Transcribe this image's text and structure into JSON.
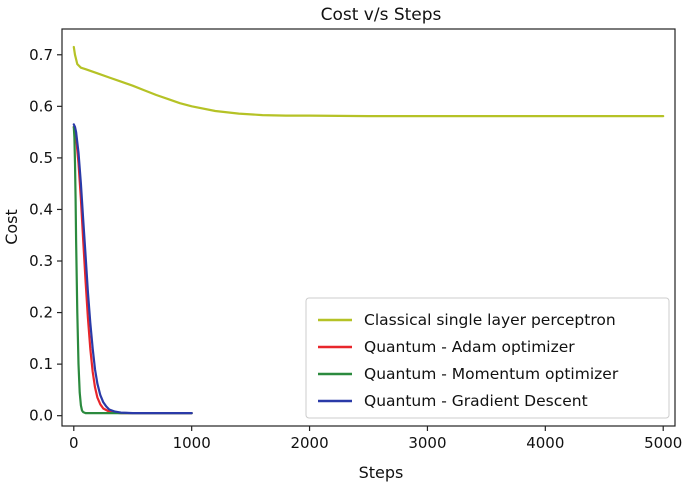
{
  "chart_data": {
    "type": "line",
    "title": "Cost v/s Steps",
    "xlabel": "Steps",
    "ylabel": "Cost",
    "xlim": [
      -100,
      5100
    ],
    "ylim": [
      -0.02,
      0.75
    ],
    "xticks": [
      0,
      1000,
      2000,
      3000,
      4000,
      5000
    ],
    "xtick_labels": [
      "0",
      "1000",
      "2000",
      "3000",
      "4000",
      "5000"
    ],
    "yticks": [
      0.0,
      0.1,
      0.2,
      0.3,
      0.4,
      0.5,
      0.6,
      0.7
    ],
    "ytick_labels": [
      "0.0",
      "0.1",
      "0.2",
      "0.3",
      "0.4",
      "0.5",
      "0.6",
      "0.7"
    ],
    "grid": false,
    "legend_position": "lower-right",
    "series": [
      {
        "name": "Classical single layer perceptron",
        "color": "#b5c226",
        "x": [
          0,
          10,
          30,
          60,
          100,
          200,
          300,
          400,
          500,
          600,
          700,
          800,
          900,
          1000,
          1200,
          1400,
          1600,
          1800,
          2000,
          2500,
          3000,
          3500,
          4000,
          4500,
          5000
        ],
        "y": [
          0.715,
          0.7,
          0.682,
          0.675,
          0.672,
          0.664,
          0.656,
          0.648,
          0.64,
          0.631,
          0.622,
          0.614,
          0.606,
          0.6,
          0.591,
          0.586,
          0.583,
          0.582,
          0.582,
          0.581,
          0.581,
          0.581,
          0.581,
          0.581,
          0.581
        ]
      },
      {
        "name": "Quantum - Adam optimizer",
        "color": "#e8262b",
        "x": [
          0,
          10,
          20,
          40,
          60,
          80,
          100,
          120,
          140,
          160,
          180,
          200,
          225,
          250,
          300,
          350,
          400,
          500,
          600,
          800,
          1000
        ],
        "y": [
          0.56,
          0.555,
          0.54,
          0.49,
          0.42,
          0.34,
          0.26,
          0.19,
          0.13,
          0.085,
          0.055,
          0.035,
          0.022,
          0.014,
          0.008,
          0.006,
          0.005,
          0.005,
          0.005,
          0.005,
          0.005
        ]
      },
      {
        "name": "Quantum - Momentum optimizer",
        "color": "#2b8a3e",
        "x": [
          0,
          5,
          10,
          15,
          20,
          30,
          40,
          50,
          60,
          70,
          80,
          100,
          150,
          200,
          300,
          500,
          1000
        ],
        "y": [
          0.56,
          0.54,
          0.49,
          0.42,
          0.34,
          0.2,
          0.1,
          0.045,
          0.02,
          0.01,
          0.007,
          0.005,
          0.005,
          0.005,
          0.005,
          0.005,
          0.005
        ]
      },
      {
        "name": "Quantum - Gradient Descent",
        "color": "#2a3aa8",
        "x": [
          0,
          10,
          20,
          40,
          60,
          80,
          100,
          120,
          140,
          160,
          180,
          200,
          225,
          250,
          275,
          300,
          350,
          400,
          500,
          600,
          800,
          1000
        ],
        "y": [
          0.565,
          0.56,
          0.55,
          0.51,
          0.45,
          0.38,
          0.31,
          0.24,
          0.18,
          0.13,
          0.09,
          0.062,
          0.04,
          0.026,
          0.018,
          0.012,
          0.008,
          0.006,
          0.005,
          0.005,
          0.005,
          0.005
        ]
      }
    ]
  }
}
